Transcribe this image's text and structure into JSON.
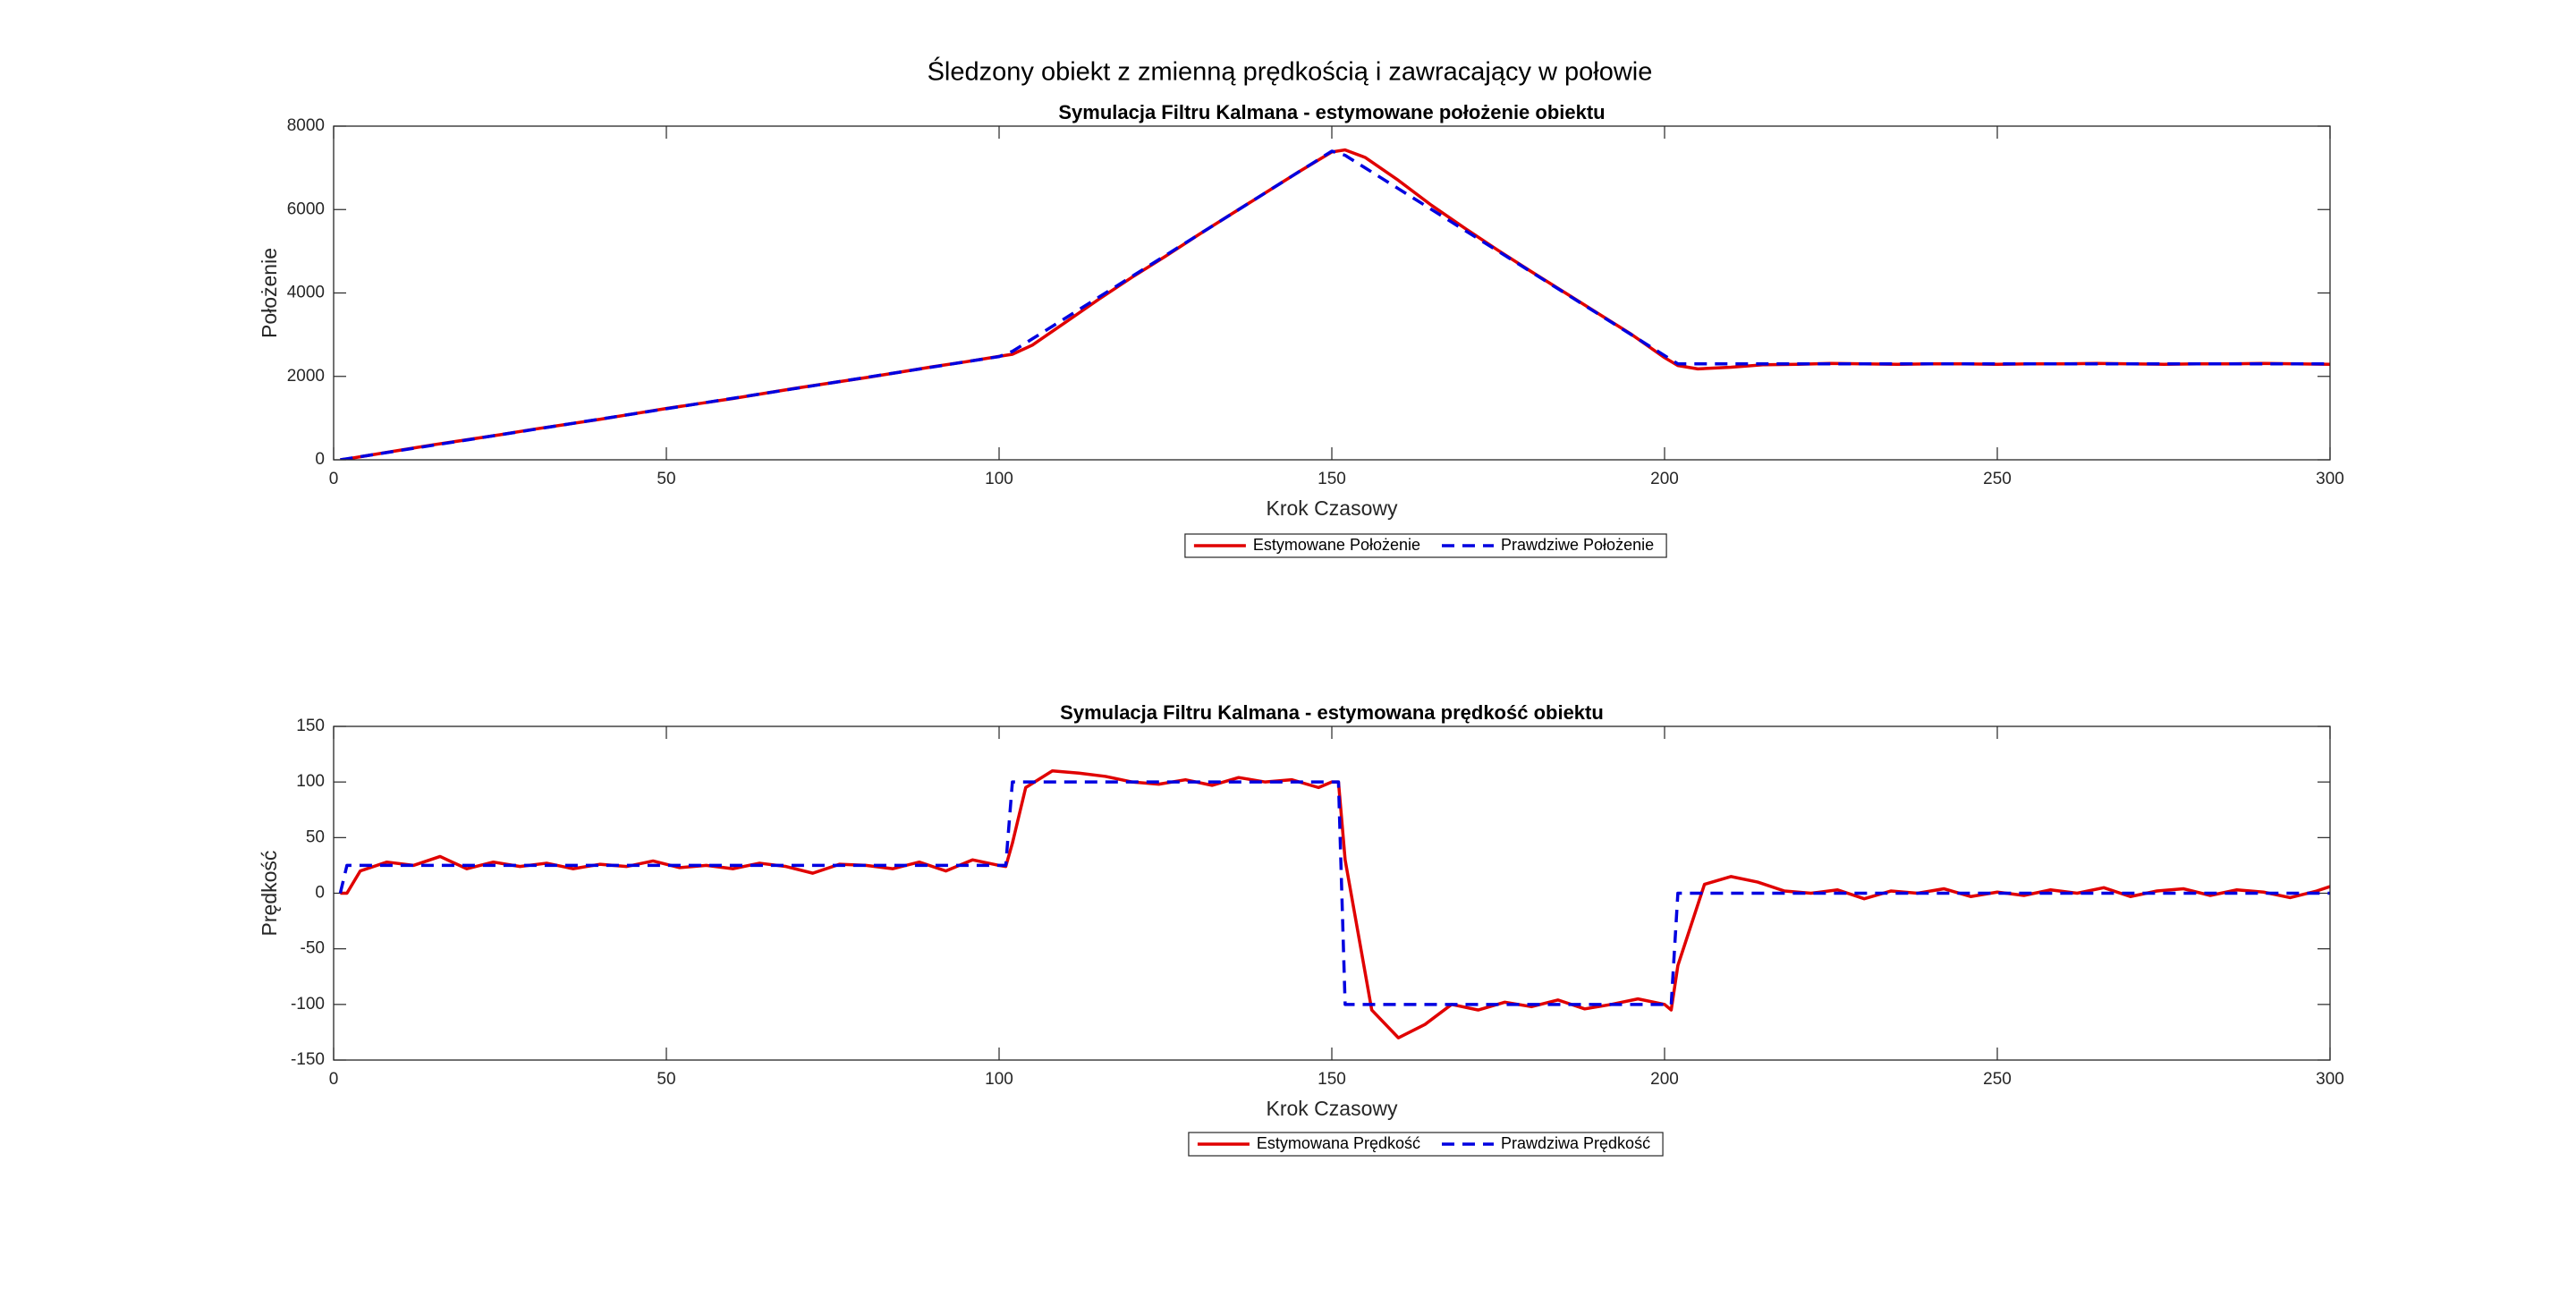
{
  "figure_title": "Śledzony obiekt z zmienną prędkością i zawracający w połowie",
  "chart_data": [
    {
      "type": "line",
      "title": "Symulacja Filtru Kalmana - estymowane położenie obiektu",
      "x_label": "Krok Czasowy",
      "y_label": "Położenie",
      "x": [
        1,
        2,
        5,
        10,
        15,
        20,
        25,
        30,
        35,
        40,
        45,
        50,
        55,
        60,
        65,
        70,
        75,
        80,
        85,
        90,
        95,
        100,
        102,
        105,
        110,
        115,
        120,
        125,
        130,
        135,
        140,
        145,
        150,
        152,
        155,
        160,
        165,
        170,
        175,
        180,
        185,
        190,
        195,
        200,
        202,
        205,
        210,
        215,
        220,
        225,
        230,
        235,
        240,
        245,
        250,
        255,
        260,
        265,
        270,
        275,
        280,
        285,
        290,
        295,
        300
      ],
      "series": [
        {
          "name": "Estymowane Położenie",
          "color": "#e00000",
          "style": "solid",
          "values": [
            0,
            20,
            100,
            230,
            360,
            480,
            600,
            730,
            850,
            970,
            1100,
            1230,
            1350,
            1470,
            1600,
            1730,
            1850,
            1970,
            2100,
            2230,
            2350,
            2480,
            2530,
            2750,
            3300,
            3850,
            4380,
            4880,
            5400,
            5900,
            6400,
            6900,
            7380,
            7430,
            7250,
            6700,
            6100,
            5550,
            5020,
            4510,
            4010,
            3510,
            3010,
            2450,
            2260,
            2180,
            2220,
            2280,
            2290,
            2310,
            2300,
            2290,
            2300,
            2300,
            2290,
            2300,
            2300,
            2310,
            2300,
            2290,
            2300,
            2300,
            2310,
            2300,
            2290
          ]
        },
        {
          "name": "Prawdziwe Położenie",
          "color": "#0000e0",
          "style": "dashed",
          "values": [
            0,
            25,
            100,
            225,
            350,
            475,
            600,
            725,
            850,
            975,
            1100,
            1225,
            1350,
            1475,
            1600,
            1725,
            1850,
            1975,
            2100,
            2225,
            2350,
            2475,
            2600,
            2900,
            3400,
            3900,
            4400,
            4900,
            5400,
            5900,
            6400,
            6900,
            7400,
            7300,
            7000,
            6500,
            6000,
            5500,
            5000,
            4500,
            4000,
            3500,
            3000,
            2500,
            2300,
            2300,
            2300,
            2300,
            2300,
            2300,
            2300,
            2300,
            2300,
            2300,
            2300,
            2300,
            2300,
            2300,
            2300,
            2300,
            2300,
            2300,
            2300,
            2300,
            2300
          ]
        }
      ],
      "xlim": [
        0,
        300
      ],
      "xticks": [
        0,
        50,
        100,
        150,
        200,
        250,
        300
      ],
      "ylim": [
        0,
        8000
      ],
      "yticks": [
        0,
        2000,
        4000,
        6000,
        8000
      ],
      "grid": false,
      "legend": "south-outside"
    },
    {
      "type": "line",
      "title": "Symulacja Filtru Kalmana - estymowana prędkość obiektu",
      "x_label": "Krok Czasowy",
      "y_label": "Prędkość",
      "x": [
        1,
        2,
        4,
        8,
        12,
        16,
        20,
        24,
        28,
        32,
        36,
        40,
        44,
        48,
        52,
        56,
        60,
        64,
        68,
        72,
        76,
        80,
        84,
        88,
        92,
        96,
        100,
        101,
        102,
        104,
        108,
        112,
        116,
        120,
        124,
        128,
        132,
        136,
        140,
        144,
        148,
        150,
        151,
        152,
        156,
        160,
        164,
        168,
        172,
        176,
        180,
        184,
        188,
        192,
        196,
        200,
        201,
        202,
        206,
        210,
        214,
        218,
        222,
        226,
        230,
        234,
        238,
        242,
        246,
        250,
        254,
        258,
        262,
        266,
        270,
        274,
        278,
        282,
        286,
        290,
        294,
        298,
        300
      ],
      "series": [
        {
          "name": "Estymowana Prędkość",
          "color": "#e00000",
          "style": "solid",
          "values": [
            0,
            0,
            20,
            28,
            25,
            33,
            22,
            28,
            24,
            27,
            22,
            26,
            24,
            29,
            23,
            25,
            22,
            27,
            24,
            18,
            26,
            25,
            22,
            28,
            20,
            30,
            25,
            24,
            45,
            95,
            110,
            108,
            105,
            100,
            98,
            102,
            97,
            104,
            100,
            102,
            95,
            100,
            100,
            30,
            -105,
            -130,
            -118,
            -100,
            -105,
            -98,
            -102,
            -96,
            -104,
            -100,
            -95,
            -100,
            -105,
            -65,
            8,
            15,
            10,
            2,
            0,
            3,
            -5,
            2,
            0,
            4,
            -3,
            1,
            -2,
            3,
            0,
            5,
            -3,
            2,
            4,
            -2,
            3,
            1,
            -4,
            2,
            6
          ]
        },
        {
          "name": "Prawdziwa Prędkość",
          "color": "#0000e0",
          "style": "dashed",
          "values": [
            0,
            25,
            25,
            25,
            25,
            25,
            25,
            25,
            25,
            25,
            25,
            25,
            25,
            25,
            25,
            25,
            25,
            25,
            25,
            25,
            25,
            25,
            25,
            25,
            25,
            25,
            25,
            25,
            100,
            100,
            100,
            100,
            100,
            100,
            100,
            100,
            100,
            100,
            100,
            100,
            100,
            100,
            100,
            -100,
            -100,
            -100,
            -100,
            -100,
            -100,
            -100,
            -100,
            -100,
            -100,
            -100,
            -100,
            -100,
            -100,
            0,
            0,
            0,
            0,
            0,
            0,
            0,
            0,
            0,
            0,
            0,
            0,
            0,
            0,
            0,
            0,
            0,
            0,
            0,
            0,
            0,
            0,
            0,
            0,
            0,
            0
          ]
        }
      ],
      "xlim": [
        0,
        300
      ],
      "xticks": [
        0,
        50,
        100,
        150,
        200,
        250,
        300
      ],
      "ylim": [
        -150,
        150
      ],
      "yticks": [
        -150,
        -100,
        -50,
        0,
        50,
        100,
        150
      ],
      "grid": false,
      "legend": "south-outside"
    }
  ]
}
